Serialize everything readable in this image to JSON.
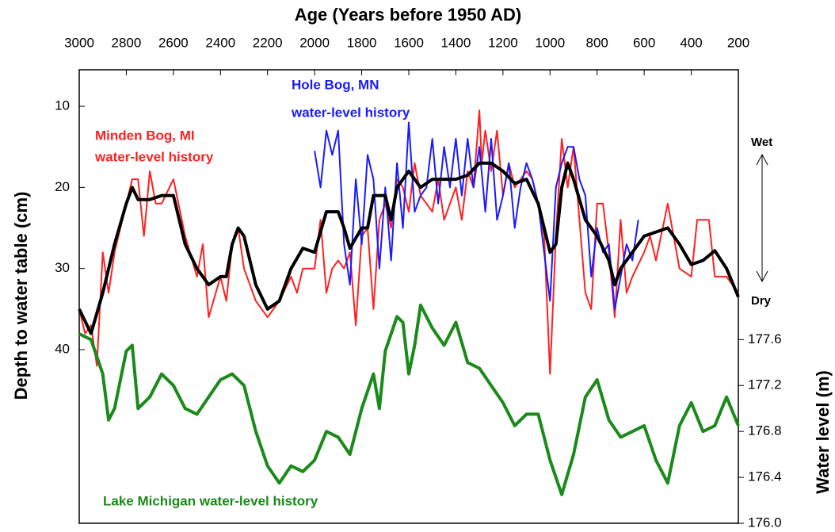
{
  "chart_data": {
    "type": "line",
    "title": "Age (Years before 1950 AD)",
    "ylabel": "Depth to water table (cm)",
    "y2label": "Water level (m)",
    "xlim": [
      3000,
      200
    ],
    "xticks": [
      3000,
      2800,
      2600,
      2400,
      2200,
      2000,
      1800,
      1600,
      1400,
      1200,
      1000,
      800,
      600,
      400,
      200
    ],
    "ylim": [
      5.5,
      61.4
    ],
    "y_inverted": true,
    "yticks": [
      10,
      20,
      30,
      40
    ],
    "y2lim": [
      176.0,
      179.95
    ],
    "y2ticks": [
      {
        "value": 176,
        "label": "176.0"
      },
      176.4,
      176.8,
      177.2,
      177.6
    ],
    "series": [
      {
        "color": "#ff2020",
        "width": 2,
        "x": [
          3000,
          2975,
          2950,
          2925,
          2900,
          2875,
          2850,
          2800,
          2775,
          2750,
          2725,
          2700,
          2675,
          2650,
          2600,
          2550,
          2500,
          2475,
          2450,
          2400,
          2375,
          2350,
          2325,
          2300,
          2250,
          2200,
          2150,
          2100,
          2075,
          2050,
          2000,
          1975,
          1950,
          1925,
          1900,
          1875,
          1850,
          1825,
          1800,
          1775,
          1750,
          1725,
          1700,
          1675,
          1650,
          1625,
          1600,
          1575,
          1550,
          1500,
          1475,
          1450,
          1400,
          1375,
          1350,
          1325,
          1300,
          1290,
          1275,
          1250,
          1225,
          1200,
          1175,
          1150,
          1100,
          1075,
          1050,
          1025,
          1000,
          975,
          950,
          925,
          900,
          875,
          850,
          825,
          800,
          775,
          750,
          725,
          700,
          675,
          650,
          600,
          575,
          550,
          500,
          450,
          400,
          375,
          325,
          300,
          250,
          200
        ],
        "values": [
          35,
          38,
          37,
          42,
          28,
          33,
          28,
          22,
          19,
          19,
          26,
          18,
          22,
          22,
          19,
          26,
          31,
          27,
          36,
          31,
          34,
          27,
          25,
          30,
          34,
          36,
          34,
          31,
          33,
          30,
          30,
          24,
          33,
          30,
          29,
          30,
          28,
          37,
          26,
          25,
          35,
          24,
          22,
          25,
          19,
          20,
          23,
          17,
          21,
          23,
          19,
          24,
          20,
          24,
          18,
          20,
          10.5,
          17,
          13,
          18,
          13,
          21,
          17,
          20,
          18,
          19,
          22,
          26,
          43,
          26,
          14,
          20,
          15,
          24,
          33,
          35,
          22,
          22,
          28,
          36,
          24,
          33,
          31,
          28,
          26,
          29,
          22,
          30,
          31,
          24,
          24,
          31,
          31,
          33
        ]
      },
      {
        "color": "#1a1aff",
        "width": 2,
        "x": [
          2000,
          1975,
          1950,
          1925,
          1900,
          1875,
          1850,
          1825,
          1800,
          1775,
          1750,
          1725,
          1700,
          1675,
          1650,
          1625,
          1600,
          1575,
          1550,
          1525,
          1500,
          1475,
          1450,
          1425,
          1400,
          1375,
          1350,
          1325,
          1300,
          1275,
          1250,
          1225,
          1200,
          1175,
          1150,
          1125,
          1100,
          1075,
          1050,
          1000,
          975,
          950,
          925,
          900,
          875,
          850,
          825,
          800,
          775,
          750,
          725,
          700,
          675,
          650,
          625
        ],
        "values": [
          15.5,
          20,
          13,
          16,
          13,
          27,
          32,
          19,
          27,
          16,
          19,
          30,
          20,
          29,
          17,
          25,
          12,
          23,
          21,
          20,
          14,
          22,
          15,
          20,
          14,
          21,
          14,
          20,
          15,
          23,
          14,
          24,
          21,
          17,
          25,
          20,
          17,
          19,
          22,
          34,
          20,
          17,
          15,
          15,
          19,
          21,
          31,
          25,
          28,
          27,
          35,
          31,
          27,
          29,
          24
        ]
      },
      {
        "color": "#000000",
        "width": 4,
        "x": [
          3000,
          2950,
          2900,
          2850,
          2800,
          2775,
          2750,
          2700,
          2650,
          2600,
          2550,
          2500,
          2450,
          2400,
          2375,
          2350,
          2325,
          2300,
          2250,
          2200,
          2150,
          2100,
          2050,
          2000,
          1950,
          1900,
          1875,
          1850,
          1800,
          1775,
          1750,
          1700,
          1675,
          1650,
          1600,
          1550,
          1500,
          1450,
          1400,
          1350,
          1300,
          1250,
          1200,
          1150,
          1100,
          1050,
          1000,
          975,
          950,
          925,
          900,
          850,
          800,
          750,
          725,
          700,
          650,
          600,
          500,
          450,
          400,
          350,
          300,
          250,
          200
        ],
        "values": [
          35,
          38,
          33,
          27,
          22,
          20,
          21.5,
          21.5,
          21,
          21,
          27,
          30,
          32,
          31,
          31,
          27,
          25,
          26,
          32,
          35,
          34,
          30,
          27.5,
          28,
          23,
          23,
          25,
          27.5,
          25,
          25,
          21,
          21,
          24,
          20,
          18,
          20,
          19,
          19,
          19,
          18.5,
          17,
          17,
          18,
          19.5,
          19,
          22,
          28,
          27,
          20,
          17,
          19,
          24,
          26,
          29,
          32,
          30,
          28,
          26,
          25,
          27,
          29.5,
          29,
          27.8,
          30,
          33.5
        ]
      },
      {
        "color": "#1a8a1a",
        "width": 4,
        "axis": "y2",
        "x": [
          3000,
          2950,
          2900,
          2875,
          2850,
          2800,
          2775,
          2750,
          2700,
          2650,
          2600,
          2550,
          2500,
          2450,
          2400,
          2350,
          2300,
          2250,
          2200,
          2150,
          2100,
          2050,
          2000,
          1950,
          1900,
          1850,
          1800,
          1750,
          1725,
          1700,
          1650,
          1625,
          1600,
          1575,
          1550,
          1500,
          1450,
          1400,
          1350,
          1300,
          1250,
          1200,
          1150,
          1100,
          1050,
          1000,
          950,
          900,
          850,
          800,
          750,
          700,
          650,
          600,
          550,
          500,
          450,
          400,
          350,
          300,
          250,
          200
        ],
        "values": [
          177.65,
          177.6,
          177.3,
          176.9,
          177.0,
          177.5,
          177.55,
          177.0,
          177.1,
          177.3,
          177.2,
          177.0,
          176.95,
          177.1,
          177.25,
          177.3,
          177.2,
          176.8,
          176.5,
          176.35,
          176.5,
          176.45,
          176.55,
          176.8,
          176.75,
          176.6,
          177.0,
          177.3,
          177.0,
          177.5,
          177.8,
          177.75,
          177.3,
          177.55,
          177.9,
          177.7,
          177.55,
          177.75,
          177.4,
          177.35,
          177.2,
          177.05,
          176.85,
          176.95,
          176.95,
          176.55,
          176.25,
          176.6,
          177.1,
          177.25,
          176.9,
          176.75,
          176.8,
          176.85,
          176.55,
          176.35,
          176.85,
          177.05,
          176.8,
          176.85,
          177.1,
          176.85
        ]
      }
    ],
    "annotations": [
      {
        "text": "Minden Bog, MI",
        "color": "#ff2020"
      },
      {
        "text": "water-level history",
        "color": "#ff2020"
      },
      {
        "text": "Hole Bog, MN",
        "color": "#1a1aff"
      },
      {
        "text": "water-level history",
        "color": "#1a1aff"
      },
      {
        "text": "Lake Michigan water-level history",
        "color": "#1a8a1a"
      },
      {
        "text": "Wet",
        "color": "#000000"
      },
      {
        "text": "Dry",
        "color": "#000000"
      }
    ]
  }
}
